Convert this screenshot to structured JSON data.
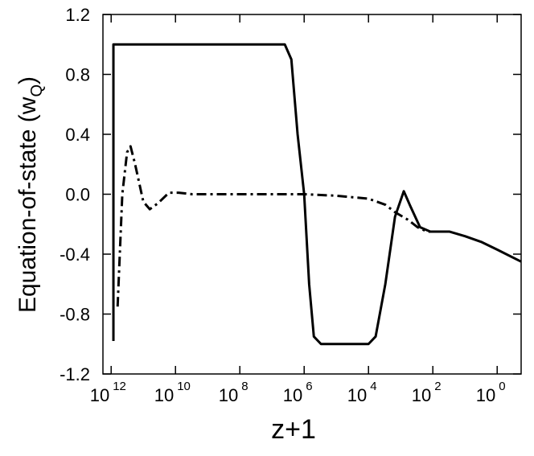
{
  "chart_data": {
    "type": "line",
    "x_label": "z+1",
    "y_label": {
      "text": "Equation-of-state (w",
      "sub": "Q",
      "end": ")"
    },
    "xscale": "log",
    "xlim": [
      1800000000000.0,
      0.18
    ],
    "xticks": [
      {
        "value": 1000000000000.0,
        "label": "10",
        "sup": "12"
      },
      {
        "value": 10000000000.0,
        "label": "10",
        "sup": "10"
      },
      {
        "value": 100000000.0,
        "label": "10",
        "sup": "8"
      },
      {
        "value": 1000000.0,
        "label": "10",
        "sup": "6"
      },
      {
        "value": 10000.0,
        "label": "10",
        "sup": "4"
      },
      {
        "value": 100.0,
        "label": "10",
        "sup": "2"
      },
      {
        "value": 1,
        "label": "10",
        "sup": "0"
      }
    ],
    "ylim": [
      -1.2,
      1.2
    ],
    "yticks": [
      1.2,
      0.8,
      0.4,
      {
        "value": 0,
        "label": "0.0"
      },
      -0.4,
      -0.8,
      -1.2
    ],
    "series": [
      {
        "style": "solid",
        "color": "#000000",
        "x": [
          850000000000.0,
          850000000000.0,
          1000000000.0,
          10000000.0,
          4000000.0,
          2500000.0,
          1600000.0,
          1000000.0,
          700000.0,
          500000.0,
          300000.0,
          100000.0,
          10000.0,
          6000.0,
          3000.0,
          1500.0,
          800.0,
          500.0,
          250.0,
          120.0,
          30.0,
          10.0,
          3,
          1,
          0.18
        ],
        "values": [
          -0.98,
          1.0,
          1.0,
          1.0,
          1.0,
          0.9,
          0.4,
          0,
          -0.6,
          -0.95,
          -1.0,
          -1.0,
          -1.0,
          -0.95,
          -0.6,
          -0.15,
          0.02,
          -0.08,
          -0.22,
          -0.25,
          -0.25,
          -0.28,
          -0.32,
          -0.37,
          -0.45
        ]
      },
      {
        "style": "dashdot",
        "color": "#000000",
        "x": [
          630000000000.0,
          450000000000.0,
          320000000000.0,
          250000000000.0,
          180000000000.0,
          100000000000.0,
          63000000000.0,
          35000000000.0,
          16000000000.0,
          8000000000.0,
          3000000000.0,
          100000000.0,
          1000000.0,
          100000.0,
          10000.0,
          3000.0,
          1500.0,
          600.0,
          300.0,
          150.0,
          100.0
        ],
        "values": [
          -0.75,
          0,
          0.28,
          0.32,
          0.2,
          -0.05,
          -0.1,
          -0.06,
          0.01,
          0.01,
          0,
          0,
          0,
          -0.01,
          -0.03,
          -0.07,
          -0.12,
          -0.17,
          -0.22,
          -0.25,
          -0.25
        ]
      }
    ]
  }
}
